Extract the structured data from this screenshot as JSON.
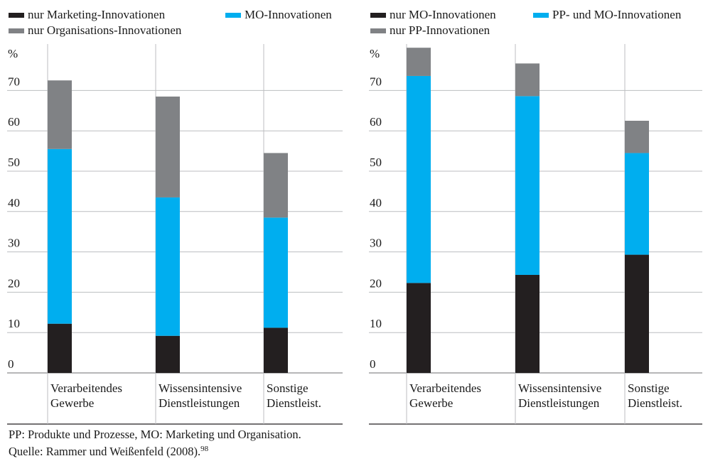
{
  "colors": {
    "black": "#231f20",
    "cyan": "#00aeef",
    "gray": "#808285",
    "grid": "#bcbec0"
  },
  "chart_data": [
    {
      "type": "bar",
      "stacked": true,
      "ylabel": "%",
      "ylim": [
        0,
        80
      ],
      "yticks": [
        0,
        10,
        20,
        30,
        40,
        50,
        60,
        70
      ],
      "categories": [
        [
          "Verarbeitendes",
          "Gewerbe"
        ],
        [
          "Wissensintensive",
          "Dienstleistungen"
        ],
        [
          "Sonstige",
          "Dienstleist."
        ]
      ],
      "series": [
        {
          "name": "nur Marketing-Innovationen",
          "color": "#231f20",
          "values": [
            12.2,
            9.2,
            11.2
          ]
        },
        {
          "name": "MO-Innovationen",
          "color": "#00aeef",
          "values": [
            43.3,
            34.3,
            27.3
          ]
        },
        {
          "name": "nur Organisations-Innovationen",
          "color": "#808285",
          "values": [
            17.0,
            25.0,
            16.0
          ]
        }
      ],
      "legend": "top"
    },
    {
      "type": "bar",
      "stacked": true,
      "ylabel": "%",
      "ylim": [
        0,
        80
      ],
      "yticks": [
        0,
        10,
        20,
        30,
        40,
        50,
        60,
        70
      ],
      "categories": [
        [
          "Verarbeitendes",
          "Gewerbe"
        ],
        [
          "Wissensintensive",
          "Dienstleistungen"
        ],
        [
          "Sonstige",
          "Dienstleist."
        ]
      ],
      "series": [
        {
          "name": "nur MO-Innovationen",
          "color": "#231f20",
          "values": [
            22.3,
            24.3,
            29.3
          ]
        },
        {
          "name": "PP- und MO-Innovationen",
          "color": "#00aeef",
          "values": [
            51.3,
            44.3,
            25.2
          ]
        },
        {
          "name": "nur PP-Innovationen",
          "color": "#808285",
          "values": [
            7.0,
            8.1,
            8.0
          ]
        }
      ],
      "legend": "top"
    }
  ],
  "footnote": {
    "line1": "PP: Produkte und Prozesse, MO: Marketing und Organisation.",
    "line2": "Quelle: Rammer und Weißenfeld (2008).",
    "ref": "98"
  }
}
